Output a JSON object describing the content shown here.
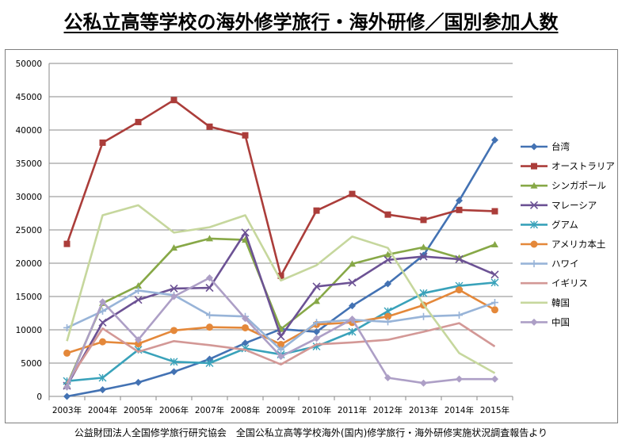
{
  "title": "公私立高等学校の海外修学旅行・海外研修／国別参加人数",
  "source": "公益財団法人全国修学旅行研究協会　全国公私立高等学校海外(国内)修学旅行・海外研修実施状況調査報告より",
  "chart_data": {
    "type": "line",
    "title": "公私立高等学校の海外修学旅行・海外研修／国別参加人数",
    "xlabel": "",
    "ylabel": "",
    "ylim": [
      0,
      50000
    ],
    "yticks": [
      0,
      5000,
      10000,
      15000,
      20000,
      25000,
      30000,
      35000,
      40000,
      45000,
      50000
    ],
    "grid": true,
    "legend_position": "right",
    "categories": [
      "2003年",
      "2004年",
      "2005年",
      "2006年",
      "2007年",
      "2008年",
      "2009年",
      "2010年",
      "2011年",
      "2012年",
      "2013年",
      "2014年",
      "2015年"
    ],
    "series": [
      {
        "name": "台湾",
        "color": "#4372b3",
        "marker": "diamond",
        "values": [
          0,
          1000,
          2100,
          3700,
          5600,
          8000,
          10100,
          9700,
          13600,
          16900,
          21200,
          29400,
          38500
        ]
      },
      {
        "name": "オーストラリア",
        "color": "#ab3d3a",
        "marker": "square",
        "values": [
          22900,
          38100,
          41200,
          44500,
          40500,
          39200,
          18100,
          27900,
          30400,
          27300,
          26500,
          28000,
          27800
        ]
      },
      {
        "name": "シンガポール",
        "color": "#87a847",
        "marker": "triangle",
        "values": [
          1700,
          14000,
          16600,
          22300,
          23700,
          23500,
          10100,
          14300,
          19900,
          21300,
          22400,
          20800,
          22800
        ]
      },
      {
        "name": "マレーシア",
        "color": "#6c5294",
        "marker": "x",
        "values": [
          1600,
          11100,
          14500,
          16200,
          16300,
          24600,
          9000,
          16500,
          17100,
          20500,
          21000,
          20600,
          18300
        ]
      },
      {
        "name": "グアム",
        "color": "#39a2ba",
        "marker": "star",
        "values": [
          2300,
          2800,
          7000,
          5200,
          5000,
          7200,
          6300,
          7500,
          9700,
          12800,
          15500,
          16600,
          17100
        ]
      },
      {
        "name": "アメリカ本土",
        "color": "#e4883a",
        "marker": "circle",
        "values": [
          6500,
          8200,
          7900,
          9900,
          10400,
          10300,
          7800,
          10800,
          11100,
          12000,
          13700,
          16000,
          13000
        ]
      },
      {
        "name": "ハワイ",
        "color": "#98b4d8",
        "marker": "plus",
        "values": [
          10300,
          12800,
          15900,
          15200,
          12200,
          12000,
          7000,
          11100,
          11500,
          11200,
          12000,
          12200,
          14100
        ]
      },
      {
        "name": "イギリス",
        "color": "#d39896",
        "marker": "none",
        "values": [
          2000,
          10200,
          6700,
          8300,
          7700,
          7000,
          4800,
          7800,
          8100,
          8500,
          9700,
          11000,
          7500
        ]
      },
      {
        "name": "韓国",
        "color": "#c6d79d",
        "marker": "none",
        "values": [
          8300,
          27200,
          28700,
          24600,
          25400,
          27200,
          17400,
          19700,
          24000,
          22300,
          13800,
          6500,
          3500
        ]
      },
      {
        "name": "中国",
        "color": "#ad9fc6",
        "marker": "diamond",
        "values": [
          1400,
          14200,
          8500,
          15000,
          17800,
          11700,
          6000,
          8700,
          11600,
          2800,
          2000,
          2600,
          2600
        ]
      }
    ]
  }
}
